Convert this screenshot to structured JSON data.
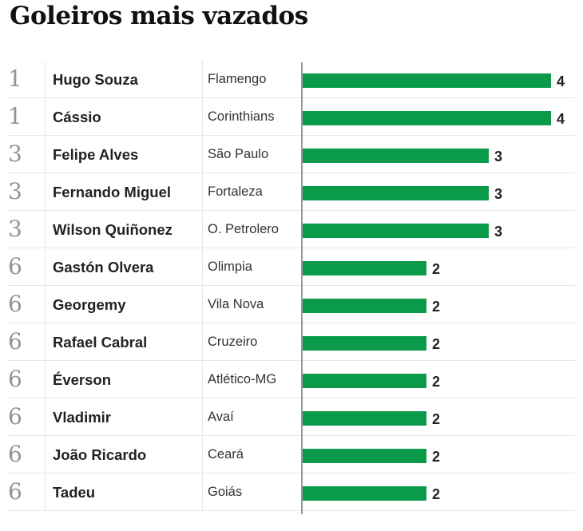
{
  "title": "Goleiros mais vazados",
  "colors": {
    "bar": "#0a9a4a",
    "rank": "#8c959a"
  },
  "chart_data": {
    "type": "bar",
    "orientation": "horizontal",
    "title": "Goleiros mais vazados",
    "xlim": [
      0,
      4
    ],
    "rows": [
      {
        "rank": "1",
        "name": "Hugo Souza",
        "team": "Flamengo",
        "value": 4
      },
      {
        "rank": "1",
        "name": "Cássio",
        "team": "Corinthians",
        "value": 4
      },
      {
        "rank": "3",
        "name": "Felipe Alves",
        "team": "São Paulo",
        "value": 3
      },
      {
        "rank": "3",
        "name": "Fernando Miguel",
        "team": "Fortaleza",
        "value": 3
      },
      {
        "rank": "3",
        "name": "Wilson Quiñonez",
        "team": "O. Petrolero",
        "value": 3
      },
      {
        "rank": "6",
        "name": "Gastón Olvera",
        "team": "Olimpia",
        "value": 2
      },
      {
        "rank": "6",
        "name": "Georgemy",
        "team": "Vila Nova",
        "value": 2
      },
      {
        "rank": "6",
        "name": "Rafael Cabral",
        "team": "Cruzeiro",
        "value": 2
      },
      {
        "rank": "6",
        "name": "Éverson",
        "team": "Atlético-MG",
        "value": 2
      },
      {
        "rank": "6",
        "name": "Vladimir",
        "team": "Avaí",
        "value": 2
      },
      {
        "rank": "6",
        "name": "João Ricardo",
        "team": "Ceará",
        "value": 2
      },
      {
        "rank": "6",
        "name": "Tadeu",
        "team": "Goiás",
        "value": 2
      }
    ]
  }
}
